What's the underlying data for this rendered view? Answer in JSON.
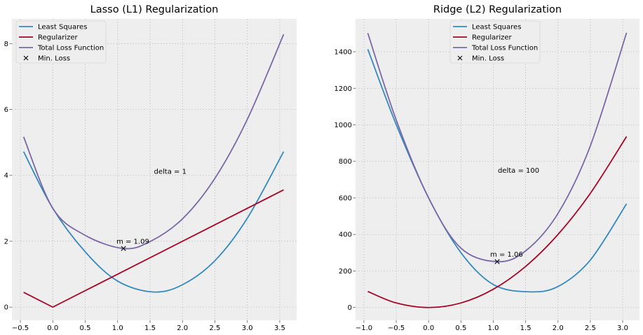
{
  "chart_data": [
    {
      "type": "line",
      "title": "Lasso (L1) Regularization",
      "xlim": [
        -0.63,
        3.76
      ],
      "ylim": [
        -0.4,
        8.75
      ],
      "xticks": [
        -0.5,
        0.0,
        0.5,
        1.0,
        1.5,
        2.0,
        2.5,
        3.0,
        3.5
      ],
      "xtick_labels": [
        "−0.5",
        "0.0",
        "0.5",
        "1.0",
        "1.5",
        "2.0",
        "2.5",
        "3.0",
        "3.5"
      ],
      "yticks": [
        0,
        2,
        4,
        6,
        8
      ],
      "ytick_labels": [
        "0",
        "2",
        "4",
        "6",
        "8"
      ],
      "grid": true,
      "legend_position": "upper-left",
      "series": [
        {
          "name": "Least Squares",
          "color": "#348abd",
          "x": [
            -0.45,
            0.0,
            0.5,
            1.0,
            1.55,
            2.0,
            2.5,
            3.0,
            3.56
          ],
          "y": [
            4.72,
            3.0,
            1.68,
            0.79,
            0.46,
            0.68,
            1.41,
            2.7,
            4.72
          ]
        },
        {
          "name": "Regularizer",
          "color": "#a60628",
          "x": [
            -0.45,
            0.0,
            3.56
          ],
          "y": [
            0.45,
            0.0,
            3.56
          ]
        },
        {
          "name": "Total Loss Function",
          "color": "#7a68a6",
          "x": [
            -0.45,
            0.0,
            0.5,
            1.09,
            1.5,
            2.0,
            2.5,
            3.0,
            3.56
          ],
          "y": [
            5.17,
            3.0,
            2.18,
            1.78,
            1.99,
            2.68,
            3.91,
            5.7,
            8.28
          ]
        }
      ],
      "markers": [
        {
          "name": "Min. Loss",
          "x": 1.09,
          "y": 1.78,
          "label": "m = 1.09"
        }
      ],
      "annotations": [
        {
          "text": "delta = 1",
          "x": 1.56,
          "y": 4.12
        }
      ]
    },
    {
      "type": "line",
      "title": "Ridge (L2) Regularization",
      "xlim": [
        -1.13,
        3.26
      ],
      "ylim": [
        -70,
        1580
      ],
      "xticks": [
        -1.0,
        -0.5,
        0.0,
        0.5,
        1.0,
        1.5,
        2.0,
        2.5,
        3.0
      ],
      "xtick_labels": [
        "−1.0",
        "−0.5",
        "0.0",
        "0.5",
        "1.0",
        "1.5",
        "2.0",
        "2.5",
        "3.0"
      ],
      "yticks": [
        0,
        200,
        400,
        600,
        800,
        1000,
        1200,
        1400
      ],
      "ytick_labels": [
        "0",
        "200",
        "400",
        "600",
        "800",
        "1000",
        "1200",
        "1400"
      ],
      "grid": true,
      "legend_position": "upper-center",
      "series": [
        {
          "name": "Least Squares",
          "color": "#348abd",
          "x": [
            -0.94,
            -0.5,
            0.0,
            0.5,
            1.0,
            1.55,
            2.0,
            2.5,
            3.06
          ],
          "y": [
            1414,
            1001,
            600,
            300,
            126,
            86,
            115,
            260,
            568
          ]
        },
        {
          "name": "Regularizer",
          "color": "#a60628",
          "x": [
            -0.94,
            -0.5,
            0.0,
            0.5,
            1.0,
            1.5,
            2.0,
            2.5,
            3.06
          ],
          "y": [
            88,
            25,
            0,
            25,
            100,
            225,
            400,
            625,
            936
          ]
        },
        {
          "name": "Total Loss Function",
          "color": "#7a68a6",
          "x": [
            -0.94,
            -0.5,
            0.0,
            0.5,
            1.06,
            1.5,
            2.0,
            2.5,
            3.06
          ],
          "y": [
            1502,
            1026,
            600,
            325,
            251,
            310,
            515,
            885,
            1504
          ]
        }
      ],
      "markers": [
        {
          "name": "Min. Loss",
          "x": 1.06,
          "y": 251,
          "label": "m = 1.06"
        }
      ],
      "annotations": [
        {
          "text": "delta = 100",
          "x": 1.07,
          "y": 752
        }
      ]
    }
  ]
}
